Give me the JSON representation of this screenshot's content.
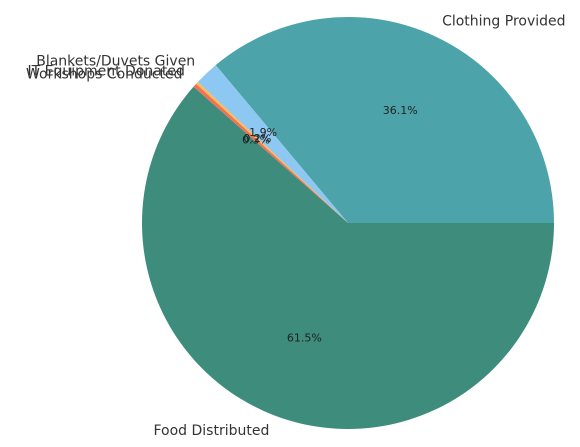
{
  "chart_data": {
    "type": "pie",
    "title": "",
    "categories": [
      "Clothing Provided",
      "Blankets/Duvets Given",
      "IT Equipment Donated",
      "Workshops Conducted",
      "Food Distributed"
    ],
    "values": [
      36.1,
      1.9,
      0.2,
      0.3,
      61.5
    ],
    "percent_labels": [
      "36.1%",
      "1.9%",
      "0.2%",
      "0.3%",
      "61.5%"
    ],
    "colors": [
      "#4ca3aa",
      "#8cc8f2",
      "#ffb957",
      "#f07454",
      "#3d8c7c"
    ],
    "start_angle_deg": 0,
    "direction": "counterclockwise"
  }
}
